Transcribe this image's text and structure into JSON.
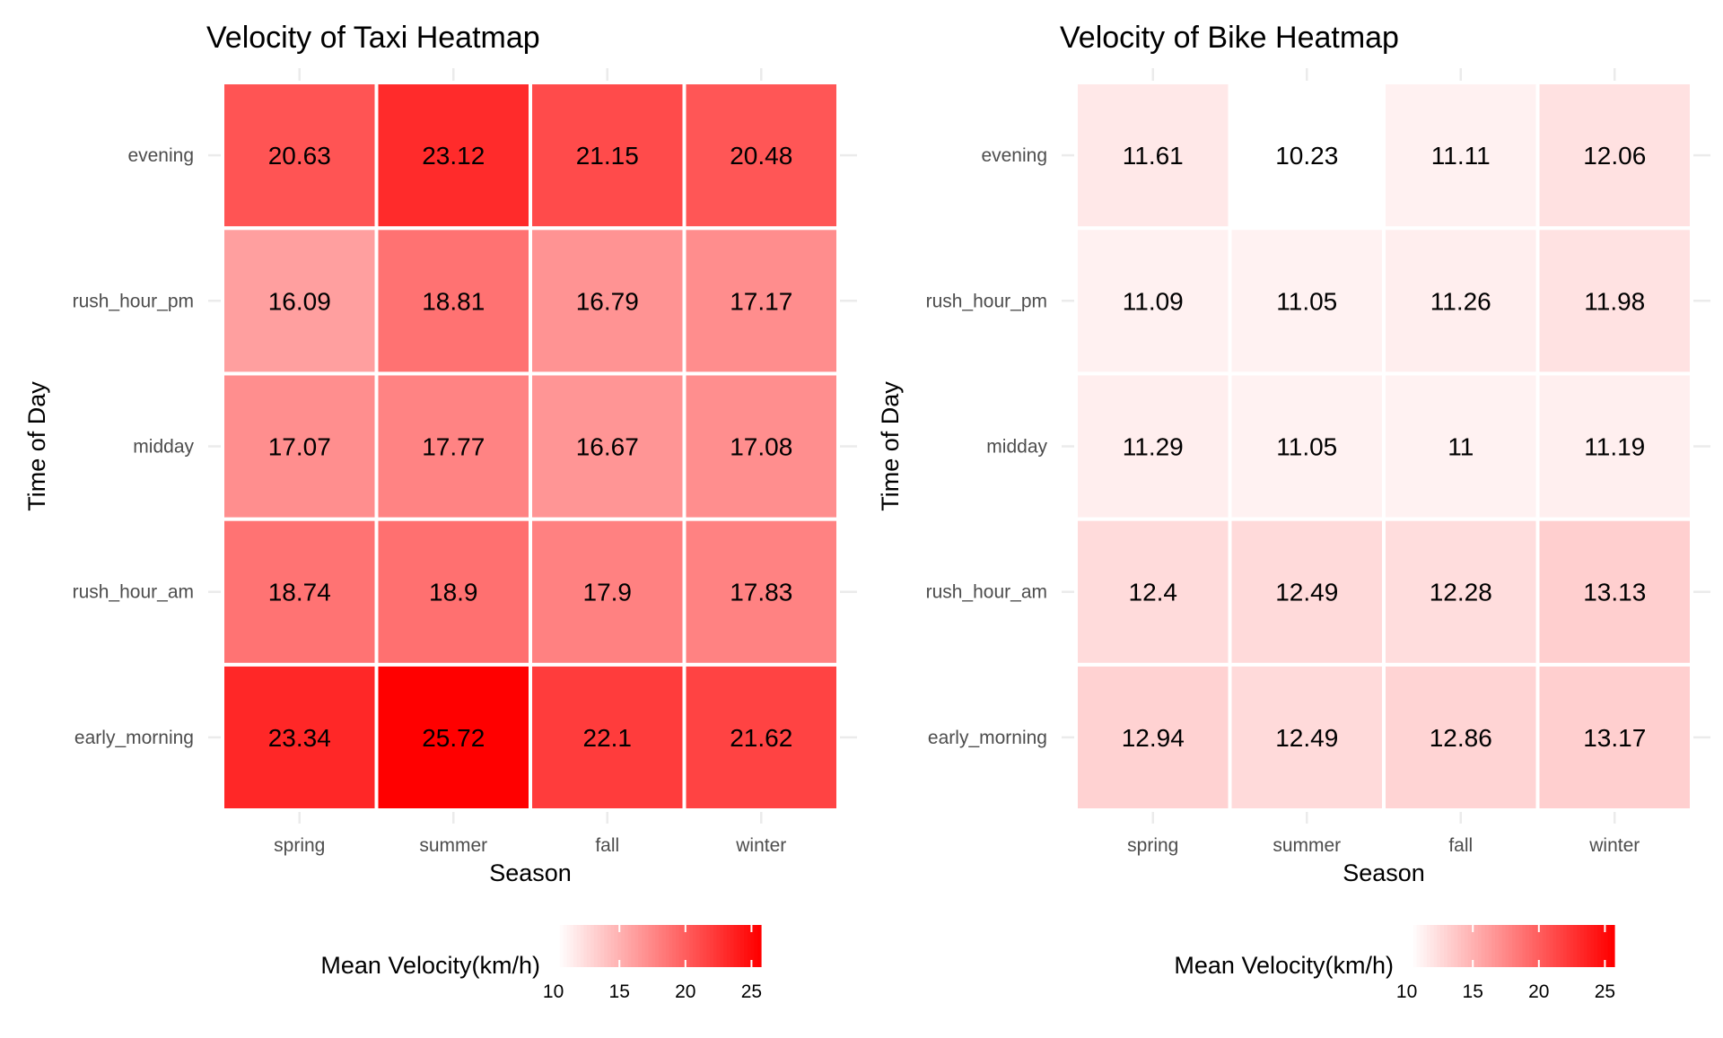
{
  "chart_data": [
    {
      "type": "heatmap",
      "title": "Velocity of Taxi Heatmap",
      "xlabel": "Season",
      "ylabel": "Time of Day",
      "x_categories": [
        "spring",
        "summer",
        "fall",
        "winter"
      ],
      "y_categories": [
        "early_morning",
        "rush_hour_am",
        "midday",
        "rush_hour_pm",
        "evening"
      ],
      "values": [
        [
          23.34,
          25.72,
          22.1,
          21.62
        ],
        [
          18.74,
          18.9,
          17.9,
          17.83
        ],
        [
          17.07,
          17.77,
          16.67,
          17.08
        ],
        [
          16.09,
          18.81,
          16.79,
          17.17
        ],
        [
          20.63,
          23.12,
          21.15,
          20.48
        ]
      ],
      "value_labels": [
        [
          "23.34",
          "25.72",
          "22.1",
          "21.62"
        ],
        [
          "18.74",
          "18.9",
          "17.9",
          "17.83"
        ],
        [
          "17.07",
          "17.77",
          "16.67",
          "17.08"
        ],
        [
          "16.09",
          "18.81",
          "16.79",
          "17.17"
        ],
        [
          "20.63",
          "23.12",
          "21.15",
          "20.48"
        ]
      ],
      "legend": {
        "title": "Mean Velocity(km/h)",
        "position": "bottom",
        "min": 10.23,
        "max": 25.72,
        "ticks": [
          "10",
          "15",
          "20",
          "25"
        ],
        "tick_values": [
          10,
          15,
          20,
          25
        ],
        "color_low": "#ffffff",
        "color_high": "#ff0000"
      },
      "grid": true
    },
    {
      "type": "heatmap",
      "title": "Velocity of Bike Heatmap",
      "xlabel": "Season",
      "ylabel": "Time of Day",
      "x_categories": [
        "spring",
        "summer",
        "fall",
        "winter"
      ],
      "y_categories": [
        "early_morning",
        "rush_hour_am",
        "midday",
        "rush_hour_pm",
        "evening"
      ],
      "values": [
        [
          12.94,
          12.49,
          12.86,
          13.17
        ],
        [
          12.4,
          12.49,
          12.28,
          13.13
        ],
        [
          11.29,
          11.05,
          11,
          11.19
        ],
        [
          11.09,
          11.05,
          11.26,
          11.98
        ],
        [
          11.61,
          10.23,
          11.11,
          12.06
        ]
      ],
      "value_labels": [
        [
          "12.94",
          "12.49",
          "12.86",
          "13.17"
        ],
        [
          "12.4",
          "12.49",
          "12.28",
          "13.13"
        ],
        [
          "11.29",
          "11.05",
          "11",
          "11.19"
        ],
        [
          "11.09",
          "11.05",
          "11.26",
          "11.98"
        ],
        [
          "11.61",
          "10.23",
          "11.11",
          "12.06"
        ]
      ],
      "legend": {
        "title": "Mean Velocity(km/h)",
        "position": "bottom",
        "min": 10.23,
        "max": 25.72,
        "ticks": [
          "10",
          "15",
          "20",
          "25"
        ],
        "tick_values": [
          10,
          15,
          20,
          25
        ],
        "color_low": "#ffffff",
        "color_high": "#ff0000"
      },
      "grid": true
    }
  ],
  "colors": {
    "text_dark": "#000000",
    "text_axis": "#4d4d4d",
    "grid": "#ebebeb",
    "tile_border": "#ffffff"
  }
}
